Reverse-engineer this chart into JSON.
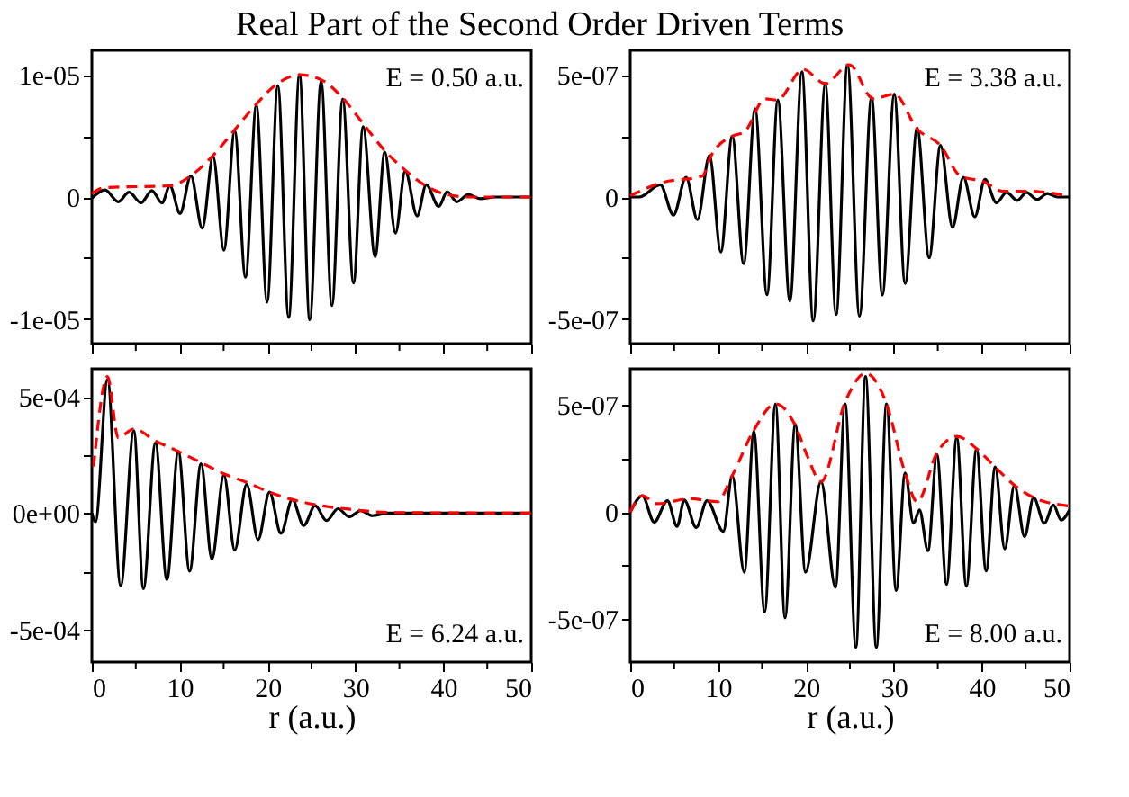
{
  "chart_data": [
    {
      "type": "line",
      "title": "Real Part of the Second Order Driven Terms",
      "annotations": [
        "E = 0.50 a.u."
      ],
      "xlim": [
        0,
        50
      ],
      "xticks": [
        0,
        {
          "value": 5,
          "label": null
        },
        10,
        {
          "value": 15,
          "label": null
        },
        20,
        {
          "value": 25,
          "label": null
        },
        30,
        {
          "value": 35,
          "label": null
        },
        40,
        {
          "value": 45,
          "label": null
        },
        50
      ],
      "ylim": [
        -1.2e-05,
        1.2e-05
      ],
      "yticks": [
        {
          "value": -1e-05,
          "label": "-1e-05"
        },
        {
          "value": -5e-06,
          "label": null
        },
        0,
        {
          "value": 5e-06,
          "label": null
        },
        {
          "value": 1e-05,
          "label": "1e-05"
        }
      ],
      "tick_labels": "y",
      "grid": false,
      "series": [
        {
          "color": "#000000",
          "line_style": "solid",
          "x": [
            0,
            1.5,
            3.01,
            4.23,
            5.6,
            6.83,
            7.99,
            8.88,
            10.04,
            11.27,
            12.57,
            13.8,
            15.03,
            16.26,
            17.49,
            18.72,
            19.95,
            21.17,
            22.4,
            23.63,
            24.8,
            26.09,
            27.32,
            28.55,
            29.78,
            30.87,
            32.24,
            33.33,
            34.56,
            35.66,
            37.02,
            38.05,
            39.48,
            40.44,
            41.53,
            42.83,
            44.19,
            45.9,
            50
          ],
          "values": [
            -1e-07,
            5.8e-07,
            -3.9e-07,
            3.9e-07,
            -4.8e-07,
            5.3e-07,
            -4.8e-07,
            9.2e-07,
            -1.35e-06,
            1.74e-06,
            -2.56e-06,
            3.33e-06,
            -4.35e-06,
            5.41e-06,
            -6.57e-06,
            7.54e-06,
            -8.6e-06,
            9.13e-06,
            -9.86e-06,
            1e-05,
            -1.005e-05,
            9.47e-06,
            -8.89e-06,
            8.02e-06,
            -7.05e-06,
            5.75e-06,
            -4.88e-06,
            3.67e-06,
            -2.95e-06,
            2.13e-06,
            -1.55e-06,
            1.01e-06,
            -7.7e-07,
            4.3e-07,
            -3.9e-07,
            1.9e-07,
            -1.4e-07,
            0,
            0
          ]
        },
        {
          "color": "#ff0000",
          "line_style": "dashed",
          "x": [
            0,
            1.5,
            8.88,
            11.27,
            13.8,
            16.26,
            18.72,
            21.17,
            23.63,
            26.09,
            28.55,
            30.87,
            33.33,
            35.66,
            38.05,
            40.44,
            43.0,
            50
          ],
          "values": [
            2.9e-07,
            7.7e-07,
            9.2e-07,
            1.74e-06,
            3.4e-06,
            5.5e-06,
            7.6e-06,
            9.3e-06,
            1e-05,
            9.6e-06,
            8.1e-06,
            6e-06,
            3.8e-06,
            2.2e-06,
            9e-07,
            2e-07,
            0,
            0
          ]
        }
      ]
    },
    {
      "type": "line",
      "annotations": [
        "E = 3.38 a.u."
      ],
      "xlim": [
        0,
        50
      ],
      "xticks": [
        0,
        {
          "value": 5,
          "label": null
        },
        10,
        {
          "value": 15,
          "label": null
        },
        20,
        {
          "value": 25,
          "label": null
        },
        30,
        {
          "value": 35,
          "label": null
        },
        40,
        {
          "value": 45,
          "label": null
        },
        50
      ],
      "ylim": [
        -6e-07,
        6e-07
      ],
      "yticks": [
        {
          "value": -5e-07,
          "label": "-5e-07"
        },
        {
          "value": -2.5e-07,
          "label": null
        },
        0,
        {
          "value": 2.5e-07,
          "label": null
        },
        {
          "value": 5e-07,
          "label": "5e-07"
        }
      ],
      "tick_labels": "y",
      "grid": false,
      "series": [
        {
          "color": "#000000",
          "line_style": "solid",
          "x": [
            0,
            1.02,
            3.42,
            4.92,
            6.35,
            7.65,
            9.02,
            10.31,
            11.61,
            12.91,
            14.21,
            15.57,
            16.8,
            18.17,
            19.54,
            20.83,
            22.2,
            23.43,
            24.73,
            26.09,
            27.46,
            28.69,
            30.05,
            31.28,
            32.65,
            34.02,
            35.31,
            36.68,
            37.91,
            39.21,
            40.37,
            41.67,
            42.83,
            44.06,
            45.08,
            46.31,
            47.47,
            48.63,
            50
          ],
          "values": [
            0,
            0,
            5e-08,
            -7.4e-08,
            8.1e-08,
            -9.3e-08,
            1.7e-07,
            -2.25e-07,
            2.49e-07,
            -2.73e-07,
            3.61e-07,
            -4e-07,
            3.97e-07,
            -4.26e-07,
            5.12e-07,
            -5.07e-07,
            4.64e-07,
            -4.81e-07,
            5.41e-07,
            -4.88e-07,
            4.09e-07,
            -4.02e-07,
            4.21e-07,
            -3.54e-07,
            2.82e-07,
            -2.49e-07,
            2.11e-07,
            -1.24e-07,
            8.1e-08,
            -8.1e-08,
            7.2e-08,
            -2.4e-08,
            1.9e-08,
            -1.4e-08,
            1.9e-08,
            -1e-08,
            1.4e-08,
            0,
            0
          ]
        },
        {
          "color": "#ff0000",
          "line_style": "dashed",
          "x": [
            0,
            3.42,
            8.2,
            9.22,
            11.61,
            12.98,
            15.37,
            16.73,
            19.67,
            22.2,
            24.93,
            27.66,
            30.05,
            32.65,
            35.31,
            37.57,
            40.3,
            42.35,
            45.08,
            50
          ],
          "values": [
            5e-09,
            5.7e-08,
            8.6e-08,
            1.7e-07,
            2.49e-07,
            2.66e-07,
            4.02e-07,
            3.97e-07,
            5.22e-07,
            4.64e-07,
            5.41e-07,
            4.02e-07,
            4.21e-07,
            2.78e-07,
            2.11e-07,
            8.6e-08,
            6.2e-08,
            2.4e-08,
            2.4e-08,
            5e-09
          ]
        }
      ]
    },
    {
      "type": "line",
      "xlabel": "r (a.u.)",
      "annotations": [
        "E = 6.24 a.u."
      ],
      "xlim": [
        0,
        50
      ],
      "xticks": [
        0,
        {
          "value": 5,
          "label": null
        },
        10,
        {
          "value": 15,
          "label": null
        },
        20,
        {
          "value": 25,
          "label": null
        },
        30,
        {
          "value": 35,
          "label": null
        },
        40,
        {
          "value": 45,
          "label": null
        },
        50
      ],
      "ylim": [
        -0.00064,
        0.00062
      ],
      "yticks": [
        {
          "value": -0.0005,
          "label": "-5e-04"
        },
        {
          "value": -0.00025,
          "label": null
        },
        {
          "value": 0,
          "label": "0e+00"
        },
        {
          "value": 0.00025,
          "label": null
        },
        {
          "value": 0.0005,
          "label": "5e-04"
        }
      ],
      "grid": false,
      "series": [
        {
          "color": "#000000",
          "line_style": "solid",
          "x": [
            0,
            0.41,
            1.78,
            3.28,
            4.78,
            5.87,
            7.24,
            8.54,
            9.84,
            11.13,
            12.43,
            13.66,
            15.03,
            16.26,
            17.62,
            18.92,
            20.22,
            21.52,
            22.81,
            24.11,
            25.41,
            26.71,
            28.01,
            29.3,
            30.6,
            31.9,
            33.61,
            50
          ],
          "values": [
            0,
            -3.7e-05,
            0.000574,
            -0.000312,
            0.000354,
            -0.000325,
            0.000302,
            -0.000286,
            0.000265,
            -0.000249,
            0.000212,
            -0.000198,
            0.000164,
            -0.000159,
            0.000124,
            -0.000114,
            9e-05,
            -8.7e-05,
            5.8e-05,
            -5.3e-05,
            3.2e-05,
            -3.2e-05,
            1.9e-05,
            -1.6e-05,
            1.1e-05,
            -1.1e-05,
            0,
            0
          ]
        },
        {
          "color": "#ff0000",
          "line_style": "dashed",
          "x": [
            0.2,
            1.78,
            3.01,
            4.78,
            7.24,
            9.84,
            12.43,
            15.03,
            17.62,
            20.22,
            22.81,
            26.09,
            29.5,
            33.61,
            50
          ],
          "values": [
            0.0002,
            0.000587,
            0.000323,
            0.000362,
            0.00031,
            0.000265,
            0.000217,
            0.000169,
            0.000132,
            9e-05,
            5.8e-05,
            3.2e-05,
            1.6e-05,
            3e-06,
            0
          ]
        }
      ]
    },
    {
      "type": "line",
      "xlabel": "r (a.u.)",
      "annotations": [
        "E = 8.00 a.u."
      ],
      "xlim": [
        0,
        50
      ],
      "xticks": [
        0,
        {
          "value": 5,
          "label": null
        },
        10,
        {
          "value": 15,
          "label": null
        },
        20,
        {
          "value": 25,
          "label": null
        },
        30,
        {
          "value": 35,
          "label": null
        },
        40,
        {
          "value": 45,
          "label": null
        },
        50
      ],
      "ylim": [
        -7e-07,
        6.7e-07
      ],
      "yticks": [
        {
          "value": -5e-07,
          "label": "-5e-07"
        },
        {
          "value": -2.5e-07,
          "label": null
        },
        0,
        {
          "value": 2.5e-07,
          "label": null
        },
        {
          "value": 5e-07,
          "label": "5e-07"
        }
      ],
      "grid": false,
      "series": [
        {
          "color": "#000000",
          "line_style": "solid",
          "x": [
            0,
            1.37,
            2.73,
            4.23,
            5.33,
            6.15,
            7.51,
            8.74,
            10.59,
            11.61,
            12.98,
            14.07,
            15.3,
            16.53,
            17.62,
            18.78,
            19.95,
            21.72,
            23.36,
            24.45,
            25.68,
            26.78,
            28.01,
            29.17,
            30.26,
            31.28,
            32.24,
            32.92,
            33.88,
            34.9,
            36.0,
            37.16,
            38.25,
            39.41,
            40.5,
            41.53,
            42.62,
            43.72,
            44.88,
            45.9,
            47.13,
            48.16,
            49.04,
            50
          ],
          "values": [
            0,
            7.7e-08,
            -4.6e-08,
            5.4e-08,
            -6.6e-08,
            5.7e-08,
            -7.1e-08,
            5.4e-08,
            -8.9e-08,
            1.71e-07,
            -2.8e-07,
            3.77e-07,
            -4.66e-07,
            5.06e-07,
            -4.94e-07,
            4.11e-07,
            -2.8e-07,
            1.43e-07,
            -3.51e-07,
            5.06e-07,
            -6.31e-07,
            6.34e-07,
            -6.31e-07,
            5.06e-07,
            -3.66e-07,
            1.83e-07,
            -5.1e-08,
            1.1e-08,
            -1.8e-07,
            2.69e-07,
            -3.37e-07,
            3.49e-07,
            -3.46e-07,
            2.97e-07,
            -2.74e-07,
            2.11e-07,
            -1.71e-07,
            1.26e-07,
            -1.14e-07,
            6.9e-08,
            -5.1e-08,
            3.4e-08,
            -3.7e-08,
            1.1e-08
          ]
        },
        {
          "color": "#ff0000",
          "line_style": "dashed",
          "x": [
            0,
            1.37,
            3.07,
            6.83,
            9.9,
            11.61,
            14.07,
            16.53,
            18.78,
            20.15,
            21.72,
            24.45,
            26.78,
            29.17,
            31.28,
            32.65,
            34.9,
            37.16,
            39.41,
            41.53,
            43.72,
            45.9,
            50
          ],
          "values": [
            0,
            7.7e-08,
            4e-08,
            6.3e-08,
            4.9e-08,
            1.71e-07,
            3.83e-07,
            5.06e-07,
            4.06e-07,
            2.63e-07,
            1.43e-07,
            5.14e-07,
            6.49e-07,
            5.06e-07,
            1.83e-07,
            4.9e-08,
            2.77e-07,
            3.54e-07,
            2.97e-07,
            2.11e-07,
            1.26e-07,
            6.9e-08,
            2.9e-08
          ]
        }
      ]
    }
  ]
}
